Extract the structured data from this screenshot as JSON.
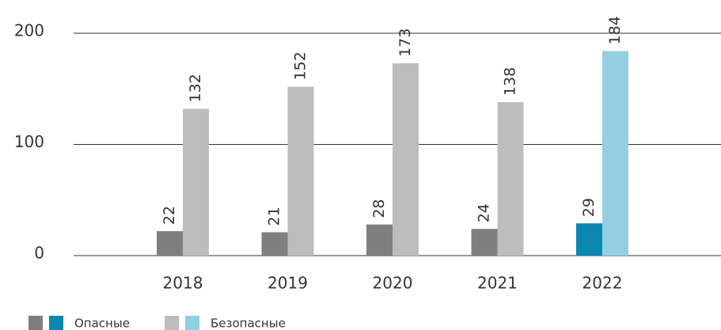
{
  "chart_data": {
    "type": "bar",
    "categories": [
      "2018",
      "2019",
      "2020",
      "2021",
      "2022"
    ],
    "series": [
      {
        "name": "Опасные",
        "colors": [
          "#7f7f7f",
          "#7f7f7f",
          "#7f7f7f",
          "#7f7f7f",
          "#0a88b0"
        ],
        "values": [
          22,
          21,
          28,
          24,
          29
        ]
      },
      {
        "name": "Безопасные",
        "colors": [
          "#bdbdbd",
          "#bdbdbd",
          "#bdbdbd",
          "#bdbdbd",
          "#93cee2"
        ],
        "values": [
          132,
          152,
          173,
          138,
          184
        ]
      }
    ],
    "ylim": [
      0,
      200
    ],
    "yticks": [
      0,
      100,
      200
    ],
    "grid": true,
    "legend": "bottom-left"
  }
}
